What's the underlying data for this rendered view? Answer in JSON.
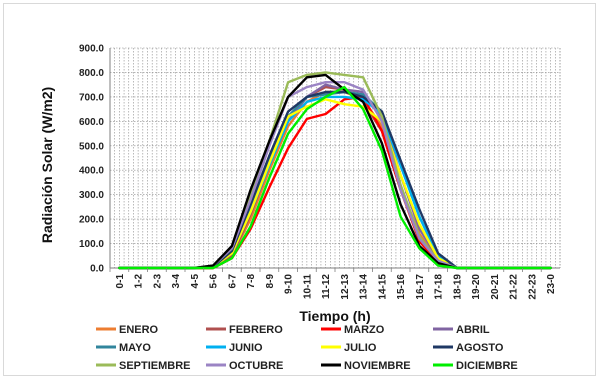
{
  "chart_data": {
    "type": "line",
    "title": "",
    "xlabel": "Tiempo (h)",
    "ylabel": "Radiación Solar (W/m2)",
    "ylim": [
      0,
      900
    ],
    "yticks": [
      "0.0",
      "100.0",
      "200.0",
      "300.0",
      "400.0",
      "500.0",
      "600.0",
      "700.0",
      "800.0",
      "900.0"
    ],
    "grid": true,
    "legend_position": "bottom",
    "categories": [
      "0-1",
      "1-2",
      "2-3",
      "3-4",
      "4-5",
      "5-6",
      "6-7",
      "7-8",
      "8-9",
      "9-10",
      "10-11",
      "11-12",
      "12-13",
      "13-14",
      "14-15",
      "15-16",
      "16-17",
      "17-18",
      "18-19",
      "19-20",
      "20-21",
      "21-22",
      "22-23",
      "23-0"
    ],
    "series": [
      {
        "name": "ENERO",
        "color": "#ed7d31",
        "values": [
          0,
          0,
          0,
          0,
          0,
          0,
          50,
          200,
          400,
          580,
          680,
          720,
          720,
          690,
          580,
          330,
          140,
          30,
          0,
          0,
          0,
          0,
          0,
          0
        ]
      },
      {
        "name": "FEBRERO",
        "color": "#b0504f",
        "values": [
          0,
          0,
          0,
          0,
          0,
          0,
          50,
          220,
          420,
          600,
          700,
          740,
          730,
          680,
          560,
          320,
          130,
          30,
          0,
          0,
          0,
          0,
          0,
          0
        ]
      },
      {
        "name": "MARZO",
        "color": "#ff0000",
        "values": [
          0,
          0,
          0,
          0,
          0,
          0,
          40,
          160,
          330,
          490,
          610,
          630,
          690,
          700,
          560,
          320,
          110,
          20,
          0,
          0,
          0,
          0,
          0,
          0
        ]
      },
      {
        "name": "ABRIL",
        "color": "#8064a2",
        "values": [
          0,
          0,
          0,
          0,
          0,
          5,
          60,
          230,
          420,
          600,
          700,
          750,
          730,
          720,
          620,
          380,
          160,
          40,
          0,
          0,
          0,
          0,
          0,
          0
        ]
      },
      {
        "name": "MAYO",
        "color": "#31859c",
        "values": [
          0,
          0,
          0,
          0,
          0,
          5,
          70,
          250,
          440,
          620,
          700,
          710,
          720,
          710,
          640,
          420,
          210,
          50,
          0,
          0,
          0,
          0,
          0,
          0
        ]
      },
      {
        "name": "JUNIO",
        "color": "#00b0f0",
        "values": [
          0,
          0,
          0,
          0,
          0,
          5,
          60,
          230,
          420,
          600,
          680,
          700,
          700,
          690,
          630,
          420,
          210,
          50,
          0,
          0,
          0,
          0,
          0,
          0
        ]
      },
      {
        "name": "JULIO",
        "color": "#ffff00",
        "values": [
          0,
          0,
          0,
          0,
          0,
          5,
          60,
          230,
          430,
          620,
          660,
          690,
          670,
          660,
          600,
          380,
          180,
          40,
          0,
          0,
          0,
          0,
          0,
          0
        ]
      },
      {
        "name": "AGOSTO",
        "color": "#1f3864",
        "values": [
          0,
          0,
          0,
          0,
          0,
          5,
          70,
          260,
          460,
          640,
          700,
          720,
          720,
          700,
          640,
          440,
          240,
          60,
          0,
          0,
          0,
          0,
          0,
          0
        ]
      },
      {
        "name": "SEPTIEMBRE",
        "color": "#9bbb59",
        "values": [
          0,
          0,
          0,
          0,
          0,
          10,
          80,
          300,
          520,
          760,
          790,
          800,
          790,
          780,
          620,
          340,
          130,
          30,
          0,
          0,
          0,
          0,
          0,
          0
        ]
      },
      {
        "name": "OCTUBRE",
        "color": "#9b84c4",
        "values": [
          0,
          0,
          0,
          0,
          0,
          10,
          80,
          280,
          500,
          700,
          740,
          760,
          760,
          730,
          600,
          320,
          120,
          30,
          0,
          0,
          0,
          0,
          0,
          0
        ]
      },
      {
        "name": "NOVIEMBRE",
        "color": "#000000",
        "values": [
          0,
          0,
          0,
          0,
          0,
          10,
          90,
          320,
          520,
          700,
          780,
          790,
          730,
          680,
          510,
          260,
          90,
          20,
          0,
          0,
          0,
          0,
          0,
          0
        ]
      },
      {
        "name": "DICIEMBRE",
        "color": "#00ee00",
        "values": [
          0,
          0,
          0,
          0,
          0,
          0,
          40,
          170,
          370,
          550,
          650,
          700,
          740,
          650,
          480,
          210,
          80,
          10,
          0,
          0,
          0,
          0,
          0,
          0
        ]
      }
    ]
  }
}
